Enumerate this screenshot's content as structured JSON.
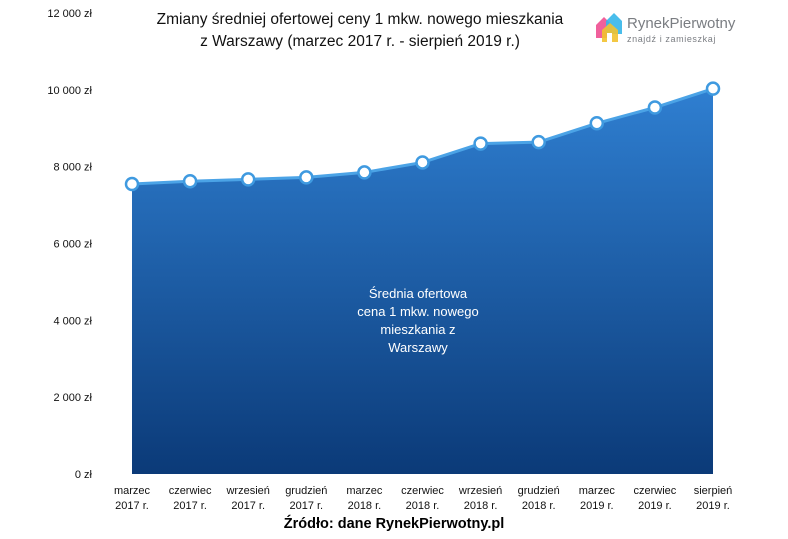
{
  "chart_data": {
    "type": "area",
    "title_lines": [
      "Zmiany średniej ofertowej ceny 1 mkw. nowego mieszkania",
      "z Warszawy (marzec 2017 r. - sierpień 2019 r.)"
    ],
    "categories": [
      [
        "marzec",
        "2017 r."
      ],
      [
        "czerwiec",
        "2017 r."
      ],
      [
        "wrzesień",
        "2017 r."
      ],
      [
        "grudzień",
        "2017 r."
      ],
      [
        "marzec",
        "2018 r."
      ],
      [
        "czerwiec",
        "2018 r."
      ],
      [
        "wrzesień",
        "2018 r."
      ],
      [
        "grudzień",
        "2018 r."
      ],
      [
        "marzec",
        "2019 r."
      ],
      [
        "czerwiec",
        "2019 r."
      ],
      [
        "sierpień",
        "2019 r."
      ]
    ],
    "series": [
      {
        "values": [
          7550,
          7620,
          7670,
          7720,
          7850,
          8110,
          8600,
          8640,
          9130,
          9540,
          10030
        ]
      }
    ],
    "area_label_lines": [
      "Średnia ofertowa",
      "cena 1 mkw. nowego",
      "mieszkania z",
      "Warszawy"
    ],
    "ylim": [
      0,
      12000
    ],
    "yticks": [
      0,
      2000,
      4000,
      6000,
      8000,
      10000,
      12000
    ],
    "ytick_labels": [
      "0 zł",
      "2 000 zł",
      "4 000 zł",
      "6 000 zł",
      "8 000 zł",
      "10 000 zł",
      "12 000 zł"
    ],
    "grid": false,
    "source": "Źródło: dane RynekPierwotny.pl"
  },
  "logo": {
    "name": "RynekPierwotny",
    "tagline": "znajdź i zamieszkaj"
  },
  "colors": {
    "area_top": "#2f7fd1",
    "area_bottom": "#0b3a78",
    "line": "#4ba3e6",
    "marker_fill": "#ffffff",
    "marker_stroke": "#3f9ae0"
  }
}
